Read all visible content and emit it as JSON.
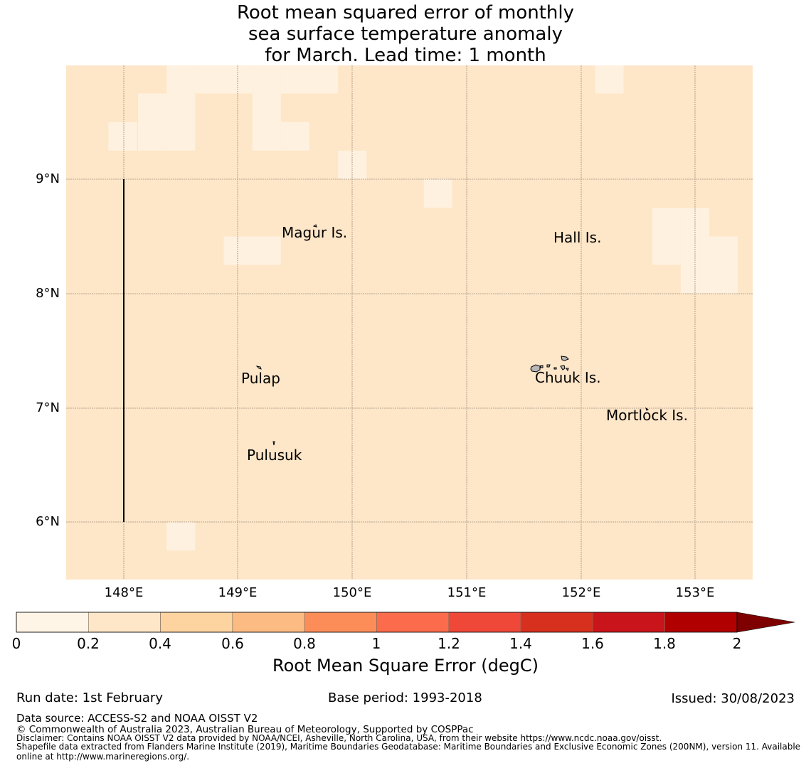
{
  "title_lines": [
    "Root mean squared error of monthly",
    "sea surface temperature anomaly",
    "for March. Lead time: 1 month"
  ],
  "map": {
    "background_color": "#fee6c8",
    "light_color": "#fff1df",
    "lat_labels": [
      "9°N",
      "8°N",
      "7°N",
      "6°N"
    ],
    "lon_labels": [
      "148°E",
      "149°E",
      "150°E",
      "151°E",
      "152°E",
      "153°E"
    ],
    "places": [
      "Magur Is.",
      "Hall Is.",
      "Pulap",
      "Chuuk Is.",
      "Mortlock Is.",
      "Pulusuk"
    ],
    "low_error_cells_lonlat": [
      [
        148.5,
        9.875
      ],
      [
        148.75,
        9.875
      ],
      [
        149.0,
        9.875
      ],
      [
        149.25,
        9.875
      ],
      [
        149.5,
        9.875
      ],
      [
        149.75,
        9.875
      ],
      [
        152.25,
        9.875
      ],
      [
        148.25,
        9.625
      ],
      [
        148.5,
        9.625
      ],
      [
        149.25,
        9.625
      ],
      [
        147.99,
        9.375
      ],
      [
        148.25,
        9.375
      ],
      [
        148.5,
        9.375
      ],
      [
        149.25,
        9.375
      ],
      [
        149.5,
        9.375
      ],
      [
        150.0,
        9.125
      ],
      [
        150.75,
        8.875
      ],
      [
        152.75,
        8.625
      ],
      [
        153.0,
        8.625
      ],
      [
        149.0,
        8.375
      ],
      [
        149.25,
        8.375
      ],
      [
        152.75,
        8.375
      ],
      [
        153.0,
        8.375
      ],
      [
        153.25,
        8.375
      ],
      [
        153.0,
        8.125
      ],
      [
        153.25,
        8.125
      ],
      [
        148.5,
        5.875
      ]
    ]
  },
  "colorbar": {
    "label": "Root Mean Square Error (degC)",
    "ticks": [
      "0",
      "0.2",
      "0.4",
      "0.6",
      "0.8",
      "1",
      "1.2",
      "1.4",
      "1.6",
      "1.8",
      "2"
    ],
    "colors": [
      "#fff5e6",
      "#fee6c8",
      "#fdd3a0",
      "#fdbb84",
      "#fc8d59",
      "#fc6b4b",
      "#ef4838",
      "#d7301f",
      "#c8141a",
      "#b10000"
    ],
    "extend_color": "#7f0000"
  },
  "footer": {
    "run_date": "Run date: 1st February",
    "base_period": "Base period: 1993-2018",
    "issued": "Issued: 30/08/2023",
    "data_source": "Data source: ACCESS-S2 and NOAA OISST V2",
    "copyright": "© Commonwealth of Australia 2023, Australian Bureau of Meteorology, Supported by COSPPac",
    "disclaimer": "Disclaimer: Contains NOAA OISST V2 data provided by NOAA/NCEI, Asheville, North Carolina, USA, from their website https://www.ncdc.noaa.gov/oisst.",
    "shapefile_1": "Shapefile data extracted from Flanders Marine Institute (2019), Maritime Boundaries Geodatabase: Maritime Boundaries and Exclusive Economic Zones (200NM), version 11. Available",
    "shapefile_2": "online at http://www.marineregions.org/."
  }
}
